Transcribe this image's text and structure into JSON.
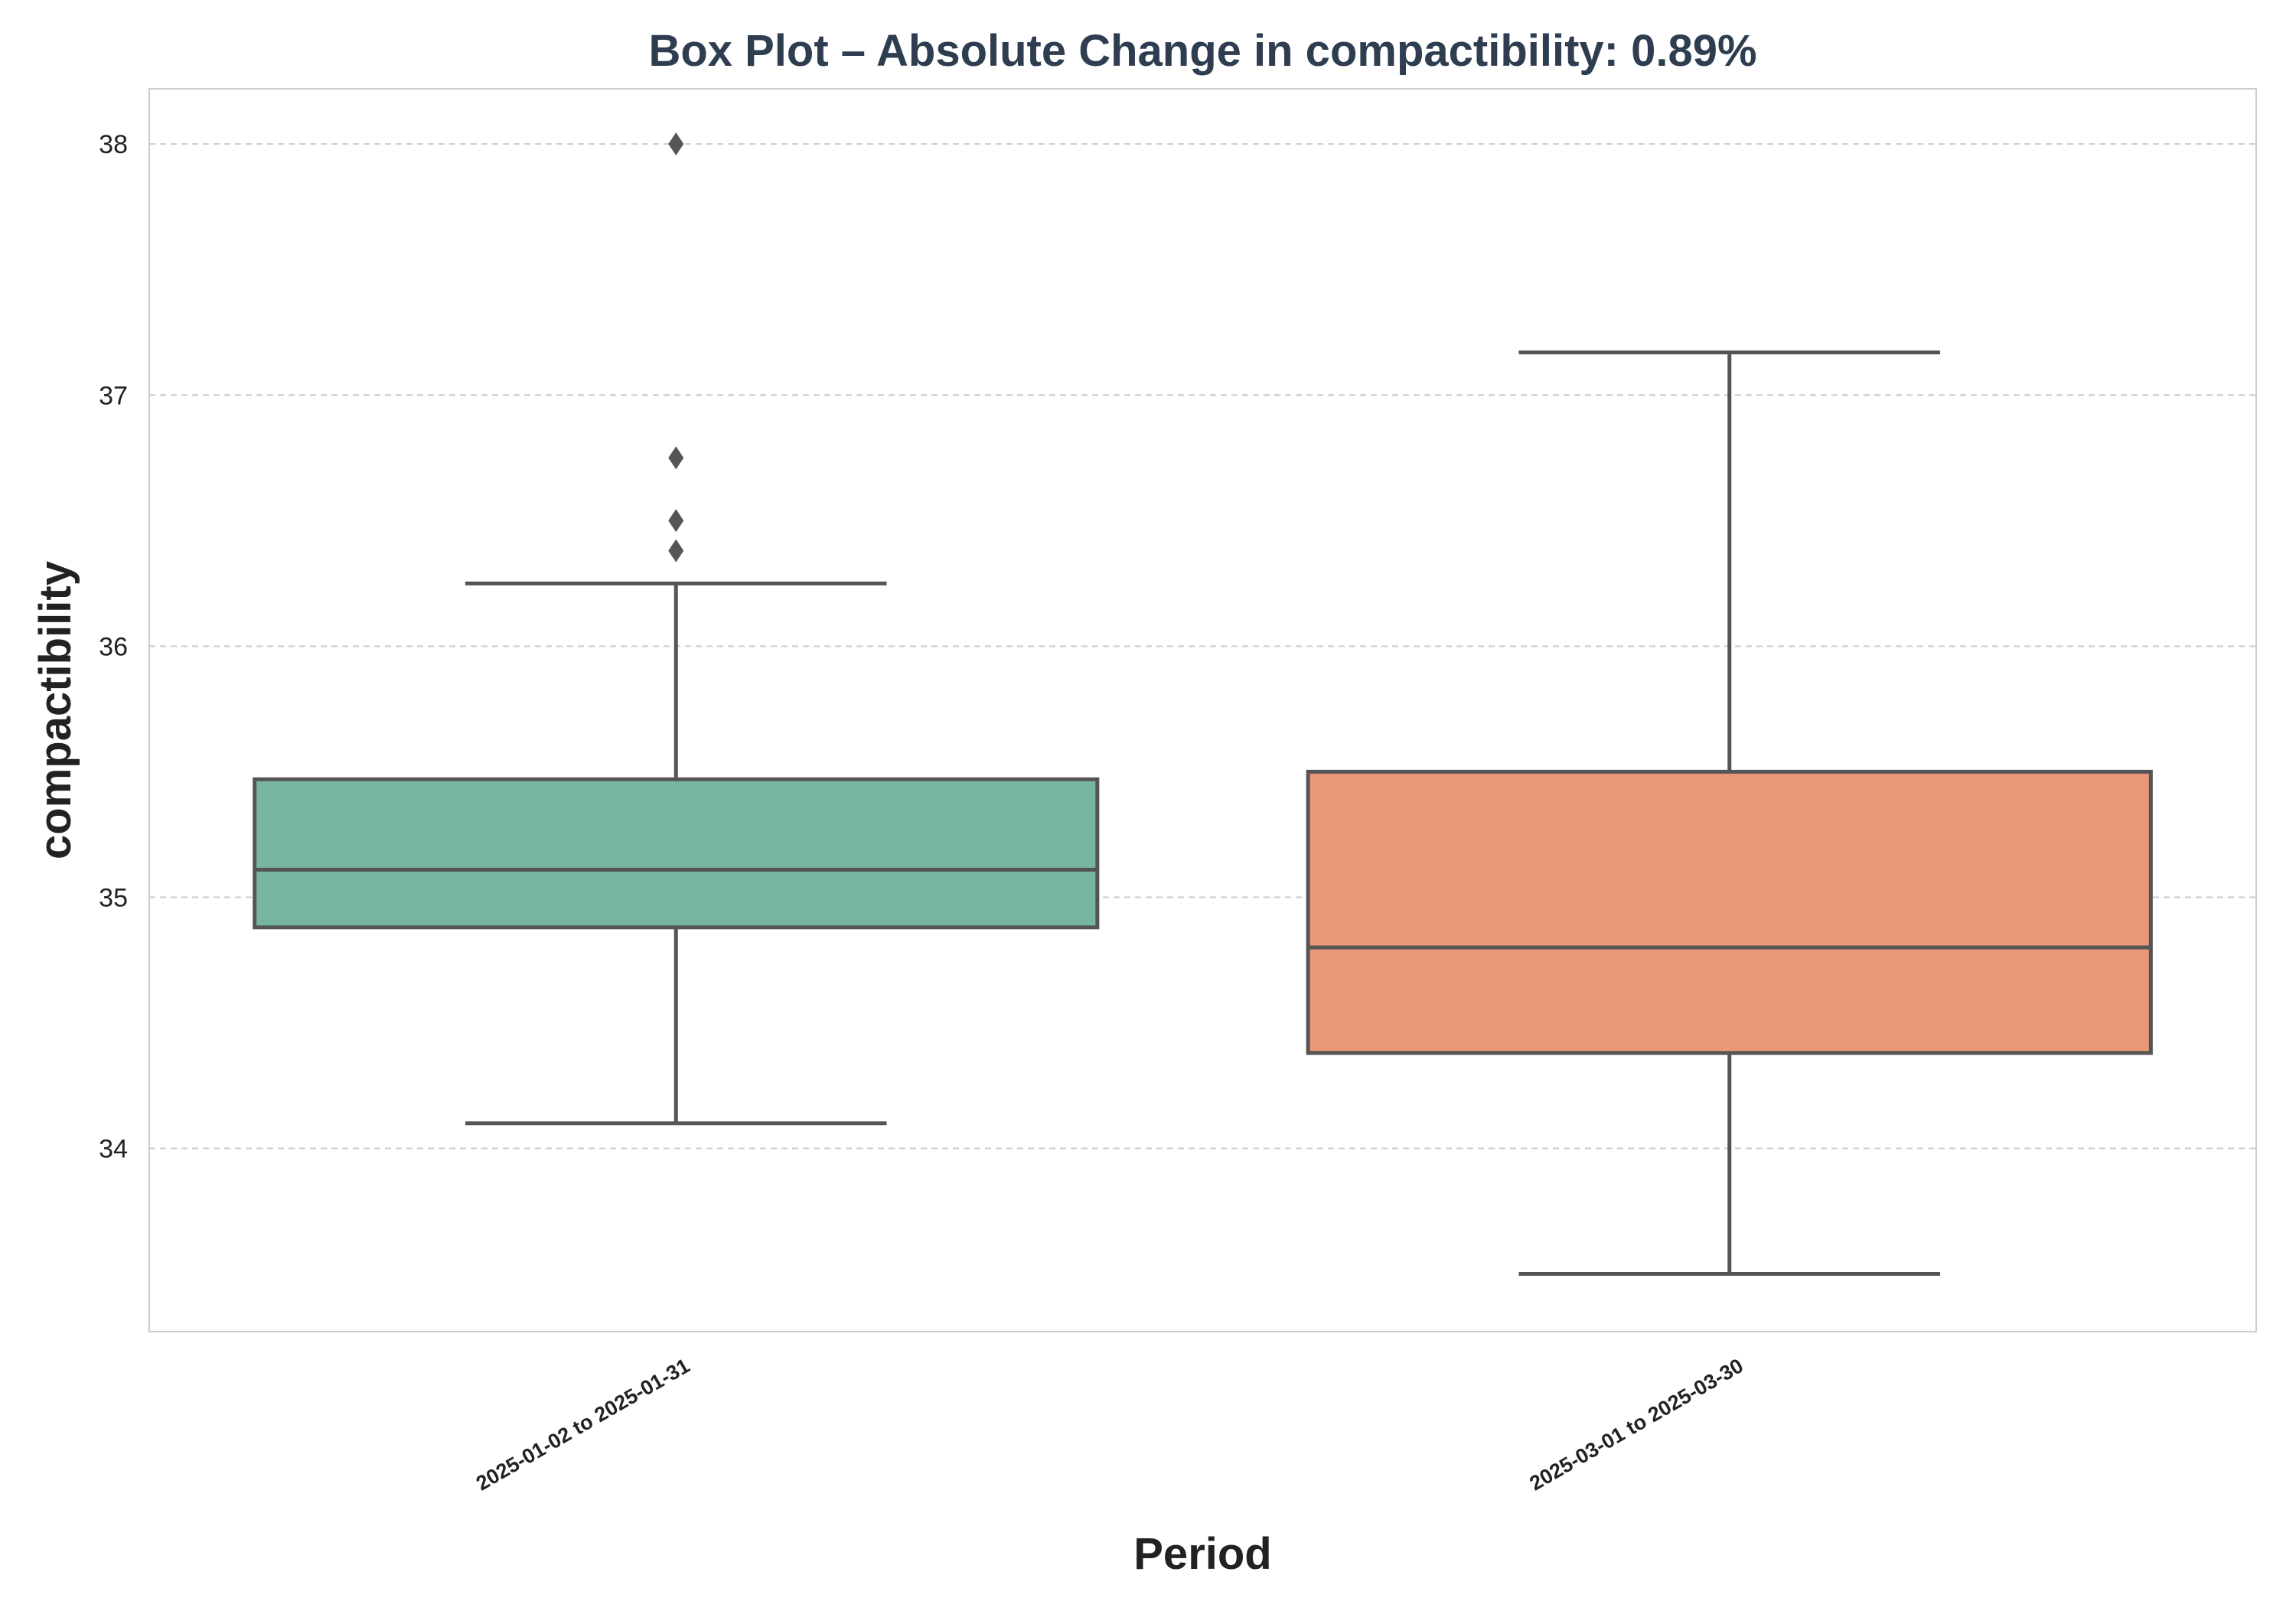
{
  "chart_data": {
    "type": "box",
    "title": "Box Plot – Absolute Change in compactibility: 0.89%",
    "xlabel": "Period",
    "ylabel": "compactibility",
    "ylim": [
      33.27,
      38.22
    ],
    "yticks": [
      34,
      35,
      36,
      37,
      38
    ],
    "grid": true,
    "categories": [
      "2025-01-02 to 2025-01-31",
      "2025-03-01 to 2025-03-30"
    ],
    "boxes": [
      {
        "category": "2025-01-02 to 2025-01-31",
        "color": "#76b6a0",
        "whisker_low": 34.1,
        "q1": 34.88,
        "median": 35.11,
        "q3": 35.47,
        "whisker_high": 36.25,
        "outliers": [
          36.38,
          36.5,
          36.75,
          38.0
        ]
      },
      {
        "category": "2025-03-01 to 2025-03-30",
        "color": "#e99877",
        "whisker_low": 33.5,
        "q1": 34.38,
        "median": 34.8,
        "q3": 35.5,
        "whisker_high": 37.17,
        "outliers": []
      }
    ],
    "colors": {
      "line": "#555555",
      "grid": "#cccccc",
      "frame": "#cccccc",
      "title": "#2e3e50"
    }
  }
}
